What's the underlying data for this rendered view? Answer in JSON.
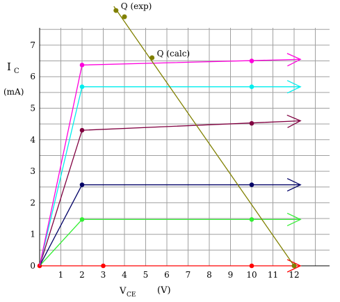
{
  "colors": {
    "background": "#ffffff",
    "grid": "#a0a0a0",
    "axis": "#000000",
    "load_line": "#808000"
  },
  "chart_data": {
    "type": "line",
    "title": "",
    "xlabel": {
      "main": "V",
      "sub": "CE",
      "unit": "(V)"
    },
    "ylabel": {
      "main": "I",
      "sub": "C",
      "unit": "(mA)"
    },
    "xlim": [
      0,
      13
    ],
    "ylim": [
      0,
      7.5
    ],
    "x_ticks": [
      "1",
      "2",
      "3",
      "4",
      "5",
      "6",
      "7",
      "8",
      "9",
      "10",
      "11",
      "12"
    ],
    "y_ticks": [
      "0",
      "1",
      "2",
      "3",
      "4",
      "5",
      "6",
      "7"
    ],
    "grid": true,
    "legend": "none",
    "series": [
      {
        "color": "#ff0000",
        "x": [
          0,
          2,
          12.3
        ],
        "y": [
          0,
          0,
          0
        ],
        "markers": [
          [
            0,
            0
          ],
          [
            3,
            0
          ],
          [
            10,
            0
          ]
        ]
      },
      {
        "color": "#33ee33",
        "x": [
          0,
          2,
          12.3
        ],
        "y": [
          0,
          1.47,
          1.47
        ],
        "markers": [
          [
            2,
            1.47
          ],
          [
            10,
            1.47
          ]
        ]
      },
      {
        "color": "#000066",
        "x": [
          0,
          2,
          12.3
        ],
        "y": [
          0,
          2.57,
          2.57
        ],
        "markers": [
          [
            2,
            2.57
          ],
          [
            10,
            2.57
          ]
        ]
      },
      {
        "color": "#800040",
        "x": [
          0,
          2,
          12.3
        ],
        "y": [
          0,
          4.3,
          4.6
        ],
        "markers": [
          [
            2,
            4.3
          ],
          [
            10,
            4.52
          ]
        ]
      },
      {
        "color": "#00eeee",
        "x": [
          0,
          2,
          12.3
        ],
        "y": [
          0,
          5.68,
          5.68
        ],
        "markers": [
          [
            2,
            5.68
          ],
          [
            10,
            5.68
          ]
        ]
      },
      {
        "color": "#ff00dd",
        "x": [
          0,
          2,
          12.3
        ],
        "y": [
          0,
          6.37,
          6.55
        ],
        "markers": [
          [
            2,
            6.37
          ],
          [
            10,
            6.5
          ]
        ]
      }
    ],
    "load_line": {
      "x": [
        3.5,
        12
      ],
      "y": [
        8.23,
        0
      ]
    },
    "points": [
      {
        "label": "Q (exp)",
        "x": 3.6,
        "y": 8.1
      },
      {
        "label": "Q (calc)",
        "x": 5.3,
        "y": 6.6
      },
      {
        "label": "",
        "x": 4.0,
        "y": 7.9
      },
      {
        "label": "",
        "x": 12.0,
        "y": 0.0
      }
    ]
  }
}
